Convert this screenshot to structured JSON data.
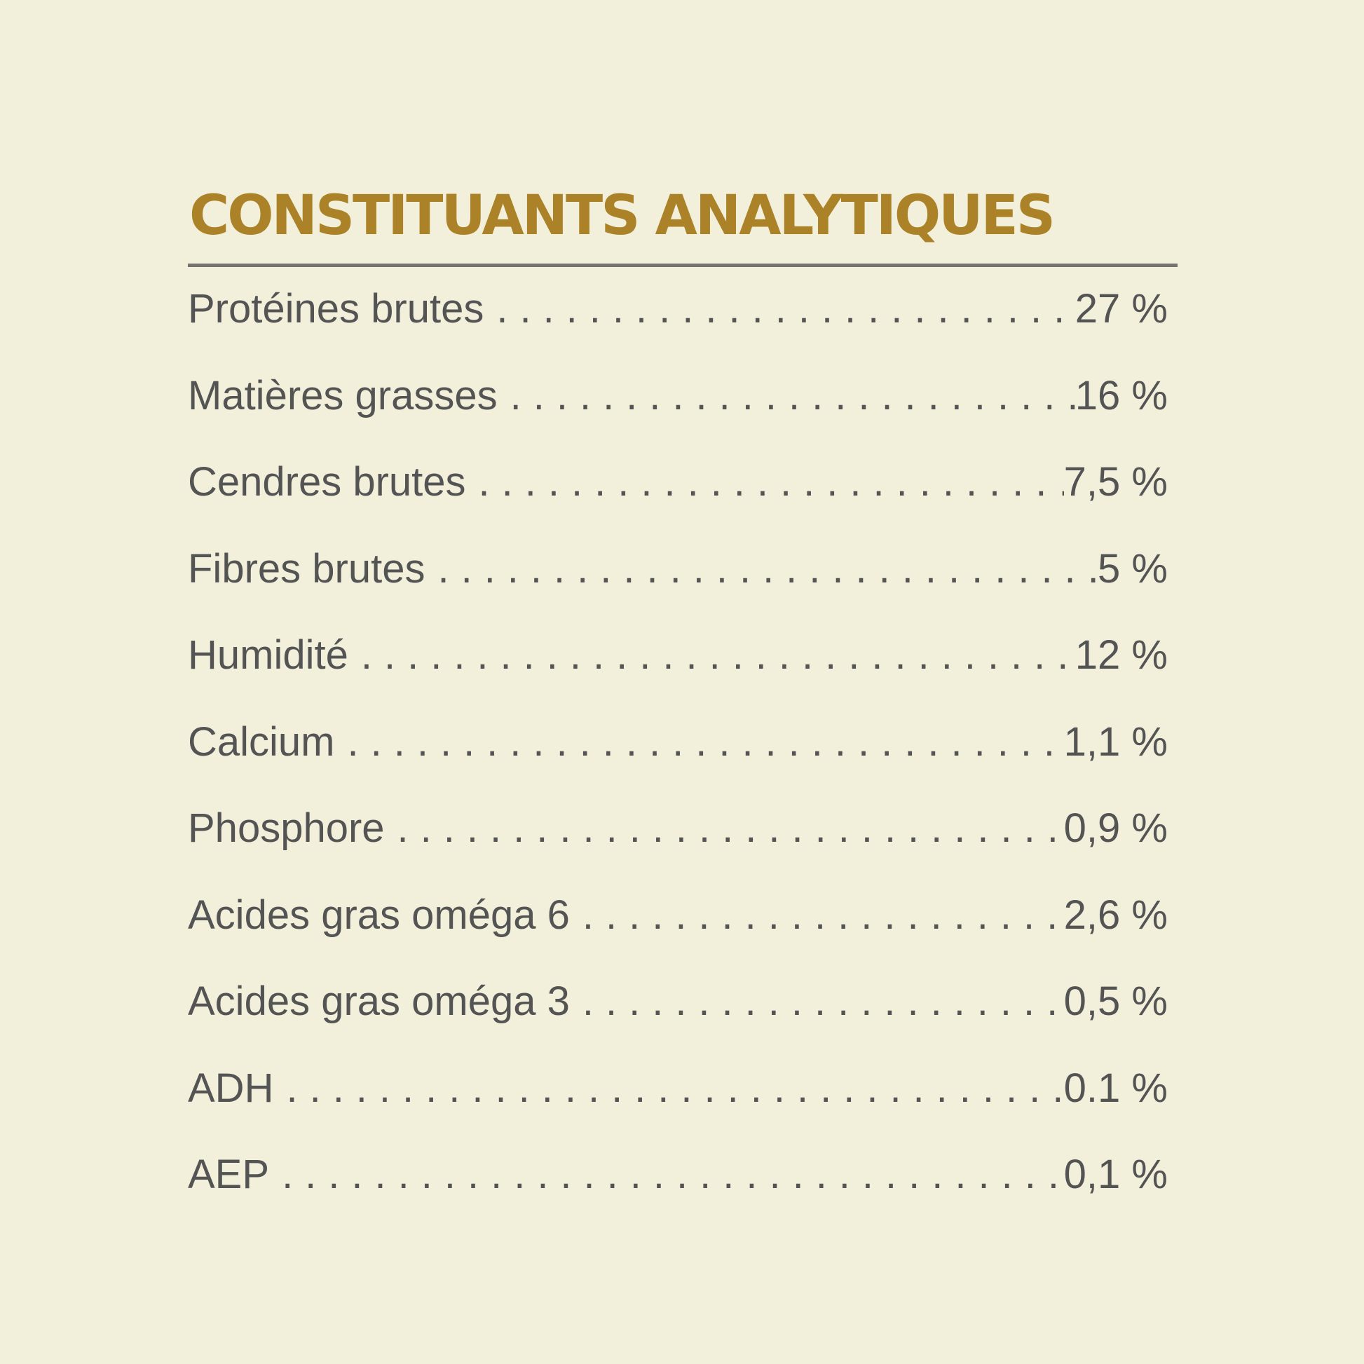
{
  "title": "CONSTITUANTS ANALYTIQUES",
  "colors": {
    "background": "#f2f0da",
    "title": "#ab8228",
    "rule": "#75736f",
    "text": "#545454"
  },
  "rows": [
    {
      "label": "Protéines brutes",
      "value": "27 %"
    },
    {
      "label": "Matières grasses",
      "value": "16 %"
    },
    {
      "label": "Cendres brutes",
      "value": "7,5 %"
    },
    {
      "label": "Fibres brutes",
      "value": "5 %"
    },
    {
      "label": "Humidité",
      "value": "12 %"
    },
    {
      "label": "Calcium",
      "value": "1,1 %"
    },
    {
      "label": "Phosphore",
      "value": "0,9 %"
    },
    {
      "label": "Acides gras oméga 6",
      "value": "2,6 %"
    },
    {
      "label": "Acides gras oméga 3",
      "value": "0,5 %"
    },
    {
      "label": "ADH",
      "value": "0.1 %"
    },
    {
      "label": "AEP",
      "value": "0,1 %"
    }
  ]
}
